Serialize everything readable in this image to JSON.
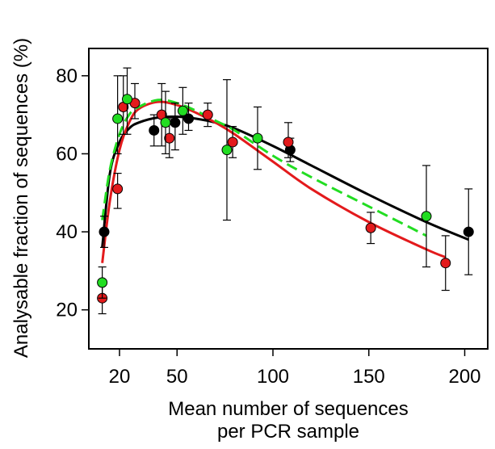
{
  "chart_data": {
    "type": "scatter",
    "title": "",
    "xlabel": [
      "Mean number of sequences",
      "per PCR sample"
    ],
    "ylabel": "Analysable fraction of sequences (%)",
    "xlim": [
      4,
      212
    ],
    "ylim": [
      10,
      87
    ],
    "xticks": [
      20,
      50,
      100,
      150,
      200
    ],
    "yticks": [
      20,
      40,
      60,
      80
    ],
    "grid": false,
    "legend": "none",
    "colors": {
      "black": "#000000",
      "red": "#e31a1c",
      "green": "#22dd22"
    },
    "series": [
      {
        "color": "black",
        "points": [
          {
            "x": 12,
            "y": 40,
            "lo": 36,
            "hi": 44
          },
          {
            "x": 38,
            "y": 66,
            "lo": 62,
            "hi": 70
          },
          {
            "x": 49,
            "y": 68,
            "lo": 61,
            "hi": 73
          },
          {
            "x": 56,
            "y": 69,
            "lo": 66,
            "hi": 73
          },
          {
            "x": 109,
            "y": 61,
            "lo": 58,
            "hi": 64
          },
          {
            "x": 202,
            "y": 40,
            "lo": 29,
            "hi": 51
          }
        ]
      },
      {
        "color": "red",
        "points": [
          {
            "x": 11,
            "y": 23,
            "lo": 19,
            "hi": 27
          },
          {
            "x": 19,
            "y": 51,
            "lo": 46,
            "hi": 55
          },
          {
            "x": 22,
            "y": 72,
            "lo": 65,
            "hi": 80
          },
          {
            "x": 28,
            "y": 73,
            "lo": 69,
            "hi": 78
          },
          {
            "x": 42,
            "y": 70,
            "lo": 62,
            "hi": 78
          },
          {
            "x": 46,
            "y": 64,
            "lo": 59,
            "hi": 69
          },
          {
            "x": 66,
            "y": 70,
            "lo": 67,
            "hi": 73
          },
          {
            "x": 79,
            "y": 63,
            "lo": 59,
            "hi": 67
          },
          {
            "x": 108,
            "y": 63,
            "lo": 59,
            "hi": 68
          },
          {
            "x": 151,
            "y": 41,
            "lo": 37,
            "hi": 45
          },
          {
            "x": 190,
            "y": 32,
            "lo": 25,
            "hi": 39
          }
        ]
      },
      {
        "color": "green",
        "points": [
          {
            "x": 11,
            "y": 27,
            "lo": 23,
            "hi": 31
          },
          {
            "x": 19,
            "y": 69,
            "lo": 60,
            "hi": 80
          },
          {
            "x": 24,
            "y": 74,
            "lo": 65,
            "hi": 82
          },
          {
            "x": 44,
            "y": 68,
            "lo": 60,
            "hi": 76
          },
          {
            "x": 53,
            "y": 71,
            "lo": 65,
            "hi": 77
          },
          {
            "x": 76,
            "y": 61,
            "lo": 43,
            "hi": 79
          },
          {
            "x": 92,
            "y": 64,
            "lo": 56,
            "hi": 72
          },
          {
            "x": 180,
            "y": 44,
            "lo": 31,
            "hi": 57
          }
        ]
      }
    ],
    "curves": [
      {
        "color": "black",
        "style": "solid",
        "x": [
          11,
          15,
          20,
          25,
          30,
          40,
          50,
          60,
          70,
          80,
          100,
          120,
          150,
          180,
          202
        ],
        "y": [
          36,
          55,
          63,
          66.5,
          68,
          69.3,
          69.5,
          69,
          68,
          66.5,
          62,
          57,
          49.5,
          42.5,
          38
        ]
      },
      {
        "color": "red",
        "style": "solid",
        "x": [
          11,
          15,
          20,
          25,
          30,
          40,
          50,
          60,
          70,
          80,
          100,
          120,
          150,
          180,
          190
        ],
        "y": [
          32,
          48,
          61,
          68,
          71.5,
          73.3,
          72.5,
          70.5,
          68,
          65,
          58,
          51,
          42.5,
          35.5,
          33.5
        ]
      },
      {
        "color": "green",
        "style": "dashed",
        "x": [
          11,
          15,
          20,
          25,
          30,
          40,
          50,
          60,
          70,
          80,
          100,
          120,
          150,
          180
        ],
        "y": [
          43,
          56,
          65,
          70,
          72,
          73.8,
          73,
          71,
          68.5,
          66,
          59.5,
          54,
          46.5,
          39
        ]
      }
    ]
  }
}
